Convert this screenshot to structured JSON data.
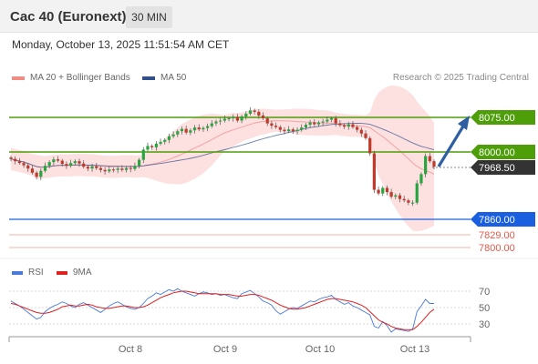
{
  "header": {
    "title": "Cac 40 (Euronext)",
    "timeframe": "30 MIN"
  },
  "datetime": "Monday, October 13, 2025 11:51:54 AM CET",
  "legend": {
    "bollinger": "MA 20 + Bollinger Bands",
    "ma50": "MA 50",
    "credit": "Research © 2025 Trading Central"
  },
  "levels": {
    "target": "8075.00",
    "pivot": "8000.00",
    "current": "7968.50",
    "support1": "7860.00",
    "support2": "7829.00",
    "support3": "7800.00"
  },
  "rsi_legend": {
    "rsi": "RSI",
    "ma": "9MA"
  },
  "rsi_axis": [
    "70",
    "50",
    "30"
  ],
  "x_axis": [
    "Oct 8",
    "Oct 9",
    "Oct 10",
    "Oct 13"
  ],
  "colors": {
    "resistance": "#4d9e08",
    "support_blue": "#1a5fe0",
    "support_red": "#e8786b",
    "current_box": "#333333",
    "arrow": "#2e5fa3",
    "bollinger": "#f07f7f",
    "ma50": "#34508c",
    "candle_up": "#27a640",
    "candle_down": "#c0392b",
    "rsi_line": "#4a7ad9",
    "rsi_ma": "#dd2222"
  },
  "chart_data": {
    "type": "line",
    "title": "Cac 40 (Euronext)",
    "price_close": [
      7985,
      7980,
      7976,
      7971,
      7964,
      7955,
      7946,
      7959,
      7970,
      7978,
      7984,
      7981,
      7974,
      7970,
      7976,
      7980,
      7975,
      7968,
      7964,
      7969,
      7965,
      7961,
      7958,
      7962,
      7961,
      7964,
      7961,
      7965,
      7963,
      7970,
      7983,
      8005,
      8013,
      8010,
      8018,
      8022,
      8026,
      8034,
      8038,
      8045,
      8050,
      8042,
      8047,
      8053,
      8049,
      8052,
      8056,
      8062,
      8066,
      8068,
      8072,
      8073,
      8076,
      8068,
      8077,
      8083,
      8090,
      8087,
      8079,
      8073,
      8062,
      8057,
      8054,
      8048,
      8045,
      8049,
      8045,
      8048,
      8053,
      8059,
      8064,
      8060,
      8064,
      8066,
      8070,
      8073,
      8062,
      8058,
      8055,
      8060,
      8054,
      8048,
      8040,
      8030,
      7997,
      7918,
      7910,
      7922,
      7913,
      7903,
      7906,
      7898,
      7895,
      7890,
      7890,
      7932,
      7952,
      7991,
      7980,
      7968
    ],
    "levels": [
      8075,
      8000,
      7968.5,
      7860,
      7829,
      7800
    ],
    "rsi": [
      58,
      55,
      52,
      48,
      44,
      40,
      36,
      38,
      45,
      49,
      52,
      54,
      57,
      55,
      52,
      50,
      54,
      56,
      53,
      50,
      47,
      44,
      48,
      52,
      55,
      57,
      54,
      51,
      49,
      48,
      50,
      55,
      61,
      64,
      68,
      66,
      69,
      72,
      70,
      73,
      70,
      68,
      66,
      64,
      67,
      69,
      68,
      66,
      67,
      65,
      66,
      64,
      62,
      61,
      67,
      69,
      71,
      67,
      63,
      58,
      56,
      53,
      46,
      42,
      45,
      48,
      50,
      49,
      52,
      55,
      58,
      57,
      60,
      62,
      63,
      65,
      60,
      57,
      54,
      56,
      52,
      50,
      47,
      44,
      41,
      27,
      25,
      33,
      28,
      20,
      24,
      23,
      22,
      21,
      24,
      45,
      52,
      60,
      55,
      55
    ],
    "rsi_ma": [
      55,
      54,
      52,
      50,
      48,
      46,
      44,
      43,
      43,
      44,
      46,
      48,
      51,
      52,
      53,
      52,
      52,
      53,
      54,
      53,
      51,
      50,
      49,
      49,
      50,
      51,
      52,
      52,
      51,
      50,
      50,
      51,
      53,
      56,
      59,
      62,
      64,
      66,
      68,
      69,
      70,
      70,
      69,
      68,
      67,
      67,
      67,
      67,
      67,
      66,
      66,
      66,
      65,
      64,
      64,
      65,
      66,
      66,
      65,
      63,
      61,
      59,
      56,
      53,
      51,
      49,
      48,
      48,
      49,
      50,
      52,
      54,
      56,
      58,
      60,
      61,
      61,
      60,
      59,
      58,
      57,
      55,
      53,
      50,
      45,
      40,
      35,
      32,
      30,
      27,
      25,
      24,
      23,
      23,
      23,
      27,
      32,
      38,
      44,
      48
    ],
    "rsi_ylim": [
      30,
      70
    ],
    "x_labels": [
      "Oct 8",
      "Oct 9",
      "Oct 10",
      "Oct 13"
    ]
  }
}
